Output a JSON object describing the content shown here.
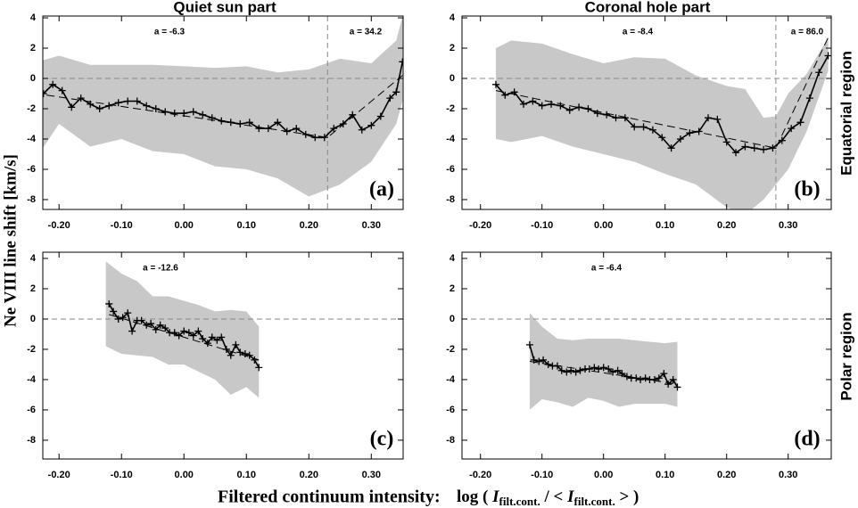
{
  "column_titles": [
    "Quiet sun part",
    "Coronal hole part"
  ],
  "row_titles": [
    "Equatorial region",
    "Polar region"
  ],
  "ylabel": "Ne VIII line shift [km/s]",
  "xlabel": "Filtered continuum intensity:",
  "xlabel_formula": [
    "log ( ",
    "I",
    "filt.cont.",
    " / < ",
    "I",
    "filt.cont.",
    " > )"
  ],
  "chart_data": [
    {
      "type": "line",
      "label": "(a)",
      "annotations": [
        "a = -6.3",
        "a = 34.2"
      ],
      "xlim": [
        -0.226,
        0.351
      ],
      "ylim": [
        -8.65,
        4.12
      ],
      "xticks": [
        {
          "value": -0.2,
          "label": "-0.20"
        },
        {
          "value": -0.1,
          "label": "-0.10"
        },
        {
          "value": 0,
          "label": "0.00"
        },
        {
          "value": 0.1,
          "label": "0.10"
        },
        {
          "value": 0.2,
          "label": "0.20"
        },
        {
          "value": 0.3,
          "label": "0.30"
        }
      ],
      "yticks": [
        -8,
        -6,
        -4,
        -2,
        0,
        2,
        4
      ],
      "reference_line": 0,
      "breakpoint": 0.23,
      "color": "#000000",
      "x": [
        -0.225,
        -0.21,
        -0.195,
        -0.18,
        -0.165,
        -0.15,
        -0.135,
        -0.12,
        -0.105,
        -0.09,
        -0.075,
        -0.06,
        -0.045,
        -0.03,
        -0.015,
        0.0,
        0.015,
        0.03,
        0.045,
        0.06,
        0.075,
        0.09,
        0.105,
        0.12,
        0.135,
        0.15,
        0.165,
        0.18,
        0.195,
        0.21,
        0.225,
        0.24,
        0.255,
        0.27,
        0.285,
        0.3,
        0.315,
        0.33,
        0.34,
        0.35
      ],
      "values": [
        -1.0,
        -0.4,
        -0.8,
        -1.9,
        -1.3,
        -1.7,
        -2.0,
        -1.8,
        -1.6,
        -1.5,
        -1.5,
        -1.8,
        -2.0,
        -2.2,
        -2.3,
        -2.3,
        -2.2,
        -2.4,
        -2.6,
        -2.8,
        -2.9,
        -3.0,
        -2.9,
        -3.3,
        -3.3,
        -2.9,
        -3.5,
        -3.3,
        -3.7,
        -3.9,
        -3.9,
        -3.3,
        -3.0,
        -2.4,
        -3.4,
        -3.1,
        -2.5,
        -1.3,
        -0.9,
        1.1
      ],
      "band": {
        "color": "#c8c8c8",
        "x": [
          -0.226,
          -0.2,
          -0.15,
          -0.1,
          -0.05,
          0,
          0.05,
          0.1,
          0.15,
          0.2,
          0.25,
          0.3,
          0.34,
          0.35
        ],
        "upper": [
          1.2,
          1.5,
          0.9,
          0.9,
          0.9,
          0.8,
          0.7,
          0.8,
          0.4,
          0.6,
          1.3,
          1.0,
          2.5,
          4.1
        ],
        "lower": [
          -4.6,
          -3.0,
          -4.5,
          -4.0,
          -4.8,
          -5.0,
          -5.8,
          -6.0,
          -6.6,
          -7.8,
          -7.0,
          -5.5,
          -3.0,
          -1.5
        ]
      },
      "fit": {
        "x": [
          -0.22,
          0.23,
          0.35
        ],
        "values": [
          -1.1,
          -3.9,
          0.2
        ]
      }
    },
    {
      "type": "line",
      "label": "(b)",
      "annotations": [
        "a = -8.4",
        "a = 86.0"
      ],
      "xlim": [
        -0.23,
        0.37
      ],
      "ylim": [
        -8.65,
        4.12
      ],
      "xticks": [
        {
          "value": -0.2,
          "label": "-0.20"
        },
        {
          "value": -0.1,
          "label": "-0.10"
        },
        {
          "value": 0,
          "label": "0.00"
        },
        {
          "value": 0.1,
          "label": "0.10"
        },
        {
          "value": 0.2,
          "label": "0.20"
        },
        {
          "value": 0.3,
          "label": "0.30"
        }
      ],
      "yticks": [
        -8,
        -6,
        -4,
        -2,
        0,
        2,
        4
      ],
      "reference_line": 0,
      "breakpoint": 0.28,
      "color": "#000000",
      "x": [
        -0.175,
        -0.16,
        -0.145,
        -0.13,
        -0.115,
        -0.1,
        -0.085,
        -0.07,
        -0.055,
        -0.04,
        -0.025,
        -0.01,
        0.005,
        0.02,
        0.035,
        0.05,
        0.065,
        0.08,
        0.095,
        0.11,
        0.125,
        0.14,
        0.155,
        0.17,
        0.185,
        0.2,
        0.215,
        0.23,
        0.245,
        0.26,
        0.275,
        0.29,
        0.305,
        0.32,
        0.335,
        0.35,
        0.365
      ],
      "values": [
        -0.4,
        -1.1,
        -0.9,
        -1.7,
        -1.5,
        -1.8,
        -1.7,
        -1.8,
        -2.1,
        -1.9,
        -2.0,
        -2.3,
        -2.4,
        -2.6,
        -2.6,
        -3.2,
        -3.2,
        -3.4,
        -3.9,
        -4.6,
        -4.0,
        -3.6,
        -3.5,
        -2.6,
        -2.7,
        -4.2,
        -4.9,
        -4.5,
        -4.6,
        -4.7,
        -4.6,
        -4.1,
        -3.3,
        -2.9,
        -1.3,
        0.4,
        1.5
      ],
      "band": {
        "color": "#c8c8c8",
        "x": [
          -0.175,
          -0.15,
          -0.1,
          -0.05,
          0,
          0.05,
          0.1,
          0.15,
          0.2,
          0.23,
          0.26,
          0.28,
          0.3,
          0.33,
          0.365
        ],
        "upper": [
          2.0,
          2.5,
          2.3,
          1.6,
          1.0,
          1.4,
          1.3,
          0.2,
          -0.5,
          -0.7,
          -2.6,
          -2.5,
          -1.0,
          0.3,
          2.7
        ],
        "lower": [
          -4.0,
          -4.2,
          -3.8,
          -4.5,
          -5.0,
          -5.5,
          -6.3,
          -7.0,
          -8.5,
          -9.0,
          -8.0,
          -7.0,
          -6.0,
          -3.5,
          0.5
        ]
      },
      "fit": {
        "x": [
          -0.175,
          0.28,
          0.365
        ],
        "values": [
          -0.8,
          -4.6,
          2.7
        ]
      }
    },
    {
      "type": "line",
      "label": "(c)",
      "annotations": [
        "a = -12.6"
      ],
      "xlim": [
        -0.226,
        0.351
      ],
      "ylim": [
        -9.24,
        4.41
      ],
      "xticks": [
        {
          "value": -0.2,
          "label": "-0.20"
        },
        {
          "value": -0.1,
          "label": "-0.10"
        },
        {
          "value": 0,
          "label": "0.00"
        },
        {
          "value": 0.1,
          "label": "0.10"
        },
        {
          "value": 0.2,
          "label": "0.20"
        },
        {
          "value": 0.3,
          "label": "0.30"
        }
      ],
      "yticks": [
        -8,
        -6,
        -4,
        -2,
        0,
        2,
        4
      ],
      "reference_line": 0,
      "color": "#000000",
      "x": [
        -0.12,
        -0.113,
        -0.105,
        -0.098,
        -0.09,
        -0.083,
        -0.075,
        -0.068,
        -0.06,
        -0.053,
        -0.045,
        -0.038,
        -0.03,
        -0.023,
        -0.015,
        -0.008,
        0.0,
        0.008,
        0.015,
        0.023,
        0.03,
        0.038,
        0.045,
        0.053,
        0.06,
        0.068,
        0.075,
        0.083,
        0.09,
        0.098,
        0.105,
        0.113,
        0.12
      ],
      "values": [
        1.0,
        0.5,
        0.0,
        0.1,
        0.4,
        -0.8,
        -0.1,
        -0.1,
        -0.4,
        -0.3,
        -0.7,
        -0.4,
        -0.6,
        -0.9,
        -0.9,
        -1.1,
        -0.8,
        -0.9,
        -1.1,
        -0.8,
        -1.3,
        -1.6,
        -1.2,
        -1.4,
        -1.2,
        -2.0,
        -2.4,
        -1.7,
        -2.2,
        -2.3,
        -2.4,
        -2.7,
        -3.2
      ],
      "band": {
        "color": "#c8c8c8",
        "x": [
          -0.125,
          -0.1,
          -0.075,
          -0.05,
          -0.025,
          0,
          0.025,
          0.05,
          0.075,
          0.1,
          0.12
        ],
        "upper": [
          3.8,
          3.0,
          2.5,
          1.5,
          1.5,
          1.2,
          0.9,
          0.5,
          0.6,
          0.5,
          -0.5
        ],
        "lower": [
          -1.8,
          -2.3,
          -2.4,
          -2.5,
          -3.0,
          -3.0,
          -3.5,
          -4.0,
          -5.0,
          -4.5,
          -5.2
        ]
      },
      "fit": {
        "x": [
          -0.12,
          0.12
        ],
        "values": [
          0.3,
          -2.7
        ]
      }
    },
    {
      "type": "line",
      "label": "(d)",
      "annotations": [
        "a = -6.4"
      ],
      "xlim": [
        -0.23,
        0.37
      ],
      "ylim": [
        -9.24,
        4.41
      ],
      "xticks": [
        {
          "value": -0.2,
          "label": "-0.20"
        },
        {
          "value": -0.1,
          "label": "-0.10"
        },
        {
          "value": 0,
          "label": "0.00"
        },
        {
          "value": 0.1,
          "label": "0.10"
        },
        {
          "value": 0.2,
          "label": "0.20"
        },
        {
          "value": 0.3,
          "label": "0.30"
        }
      ],
      "yticks": [
        -8,
        -6,
        -4,
        -2,
        0,
        2,
        4
      ],
      "reference_line": 0,
      "color": "#000000",
      "x": [
        -0.12,
        -0.113,
        -0.105,
        -0.098,
        -0.09,
        -0.083,
        -0.075,
        -0.068,
        -0.06,
        -0.053,
        -0.045,
        -0.038,
        -0.03,
        -0.023,
        -0.015,
        -0.008,
        0.0,
        0.008,
        0.015,
        0.023,
        0.03,
        0.038,
        0.045,
        0.053,
        0.06,
        0.068,
        0.075,
        0.083,
        0.09,
        0.098,
        0.105,
        0.113,
        0.12
      ],
      "values": [
        -1.7,
        -2.7,
        -2.8,
        -2.7,
        -3.0,
        -3.1,
        -3.1,
        -3.4,
        -3.5,
        -3.4,
        -3.5,
        -3.4,
        -3.3,
        -3.3,
        -3.2,
        -3.3,
        -3.2,
        -3.3,
        -3.5,
        -3.4,
        -3.6,
        -3.8,
        -3.9,
        -3.9,
        -4.0,
        -3.9,
        -4.0,
        -4.0,
        -3.9,
        -3.6,
        -4.3,
        -4.0,
        -4.5
      ],
      "band": {
        "color": "#c8c8c8",
        "x": [
          -0.12,
          -0.1,
          -0.075,
          -0.05,
          -0.025,
          0,
          0.025,
          0.05,
          0.075,
          0.1,
          0.12
        ],
        "upper": [
          0.4,
          -0.5,
          -1.3,
          -1.4,
          -1.3,
          -1.3,
          -1.3,
          -1.4,
          -1.5,
          -1.6,
          -1.5
        ],
        "lower": [
          -6.0,
          -5.3,
          -5.5,
          -5.8,
          -5.2,
          -5.4,
          -5.8,
          -5.6,
          -5.6,
          -5.6,
          -5.8
        ]
      },
      "fit": {
        "x": [
          -0.12,
          0.12
        ],
        "values": [
          -2.8,
          -4.3
        ]
      }
    }
  ]
}
